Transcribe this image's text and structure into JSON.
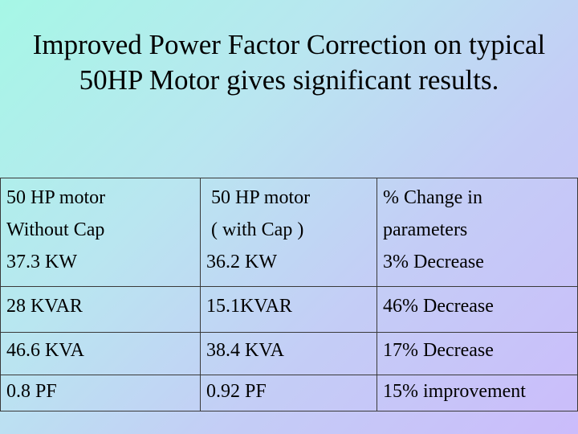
{
  "title": {
    "line1": "Improved Power Factor Correction on  typical",
    "line2": "50HP Motor gives significant results."
  },
  "table": {
    "header_row": {
      "col1": [
        "50 HP  motor",
        "Without Cap",
        "37.3 KW"
      ],
      "col2": [
        " 50 HP motor",
        " ( with Cap )",
        "36.2 KW"
      ],
      "col3": [
        "% Change in",
        "parameters",
        "3% Decrease"
      ]
    },
    "rows": [
      [
        "28 KVAR",
        "15.1KVAR",
        "46% Decrease"
      ],
      [
        "46.6 KVA",
        "38.4 KVA",
        "17% Decrease"
      ],
      [
        "0.8 PF",
        "0.92 PF",
        "15% improvement"
      ]
    ]
  }
}
